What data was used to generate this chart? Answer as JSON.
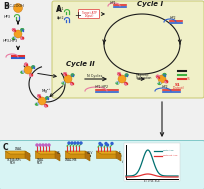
{
  "fig_width": 2.04,
  "fig_height": 1.89,
  "dpi": 100,
  "bg_color": "#f0f0f0",
  "panel_A_bg": "#f0f0c8",
  "panel_C_bg": "#d8f4f4",
  "color_orange": "#F4A020",
  "color_green": "#40b040",
  "color_red": "#e03030",
  "color_blue": "#3060d0",
  "color_pink": "#e878a0",
  "color_dark": "#1a1a1a",
  "color_gray": "#888888",
  "color_gold": "#DAA520",
  "color_teal": "#007070",
  "color_black": "#000000",
  "color_lightblue": "#a0b8e8",
  "color_magenta": "#c060c0",
  "np_arm_colors": [
    "#40b040",
    "#40b040",
    "#e03030",
    "#e03030"
  ],
  "np_end_colors": [
    "#3060d0",
    "#3060d0",
    "#3060d0",
    "#3060d0"
  ]
}
